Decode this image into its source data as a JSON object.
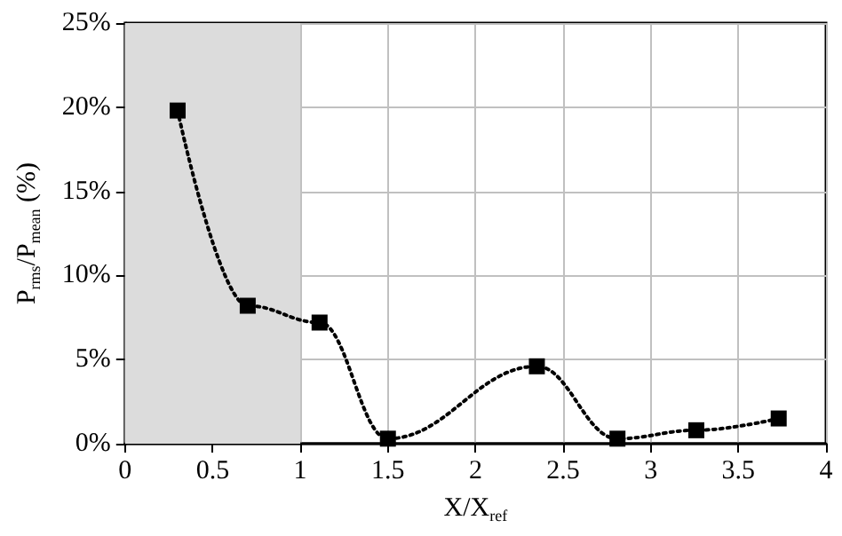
{
  "chart_data": {
    "type": "line",
    "xlabel": "X/X$_{ref}$",
    "ylabel": "P$_{rms}$/P$_{mean}$ (%)",
    "x": [
      0.3,
      0.7,
      1.11,
      1.5,
      2.35,
      2.81,
      3.26,
      3.73
    ],
    "series": [
      {
        "color": "#000000",
        "values": [
          19.8,
          8.2,
          7.2,
          0.3,
          4.6,
          0.3,
          0.8,
          1.5
        ]
      }
    ],
    "xlim": [
      0,
      4
    ],
    "xticks": [
      0,
      0.5,
      1,
      1.5,
      2,
      2.5,
      3,
      3.5,
      4
    ],
    "ylim": [
      0,
      25
    ],
    "yticks": [
      {
        "value": 0,
        "label": "0%"
      },
      {
        "value": 5,
        "label": "5%"
      },
      {
        "value": 10,
        "label": "10%"
      },
      {
        "value": 15,
        "label": "15%"
      },
      {
        "value": 20,
        "label": "20%"
      },
      {
        "value": 25,
        "label": "25%"
      }
    ],
    "bands": [
      {
        "axis": "x",
        "from": 0,
        "to": 1,
        "color": "#dcdcdc"
      }
    ],
    "grid": true,
    "marker": "square",
    "line_style": "dotted"
  }
}
